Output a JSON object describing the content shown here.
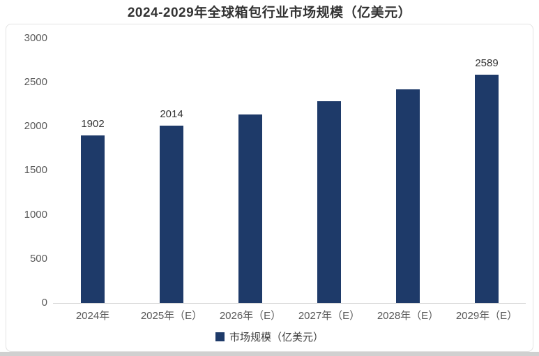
{
  "page": {
    "title": "2024-2029年全球箱包行业市场规模（亿美元）"
  },
  "chart_data": {
    "type": "bar",
    "title": "2024-2029年全球箱包行业市场规模（亿美元）",
    "categories": [
      "2024年",
      "2025年（E）",
      "2026年（E）",
      "2027年（E）",
      "2028年（E）",
      "2029年（E）"
    ],
    "values": [
      1902,
      2014,
      2135,
      2285,
      2425,
      2589
    ],
    "data_labels": [
      "1902",
      "2014",
      null,
      null,
      null,
      "2589"
    ],
    "ylabel": "",
    "xlabel": "",
    "ylim": [
      0,
      3000
    ],
    "yticks": [
      3000,
      2500,
      2000,
      1500,
      1000,
      500,
      0
    ],
    "grid": false,
    "legend": {
      "label": "市场规模（亿美元）",
      "position": "bottom"
    },
    "bar_color": "#1e3a69"
  },
  "colors": {
    "bar": "#1e3a69",
    "title_text": "#333333",
    "axis_text": "#595959",
    "axis_line": "#d2d2d2",
    "panel_border": "#e3e3e3",
    "legend_text": "#404040",
    "page_strip": "#d0d0d0"
  }
}
